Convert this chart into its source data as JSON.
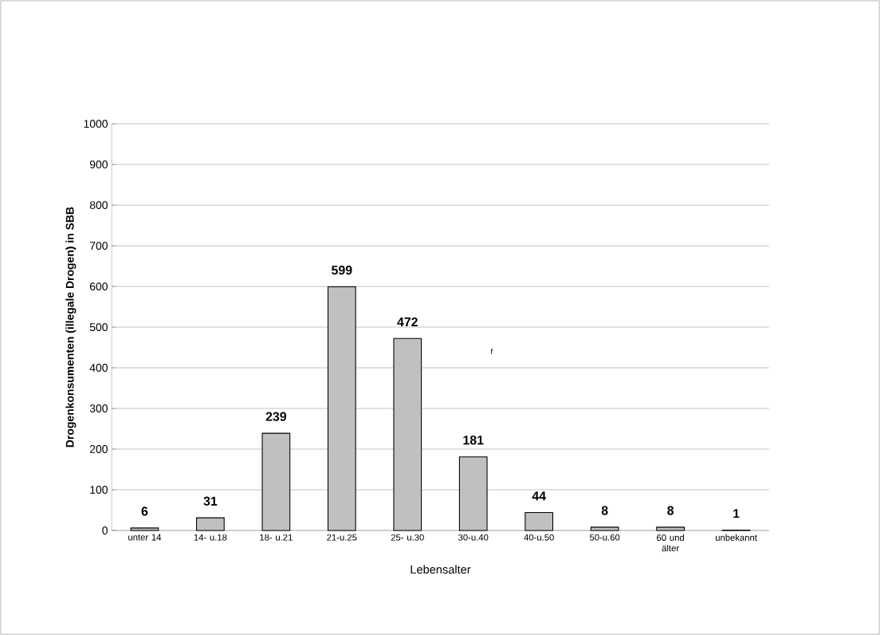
{
  "chart_data": {
    "type": "bar",
    "xlabel": "Lebensalter",
    "ylabel": "Drogenkonsumenten (illegale Drogen) in SBB",
    "categories": [
      "unter 14",
      "14- u.18",
      "18- u.21",
      "21-u.25",
      "25- u.30",
      "30-u.40",
      "40-u.50",
      "50-u.60",
      "60 und älter",
      "unbekannt"
    ],
    "values": [
      6,
      31,
      239,
      599,
      472,
      181,
      44,
      8,
      8,
      1
    ],
    "color": "#c0c0c0",
    "data_labels": true,
    "ylim": [
      0,
      1000
    ],
    "yticks": [
      0,
      100,
      200,
      300,
      400,
      500,
      600,
      700,
      800,
      900,
      1000
    ],
    "grid": "y",
    "annotations": [
      "f"
    ]
  }
}
